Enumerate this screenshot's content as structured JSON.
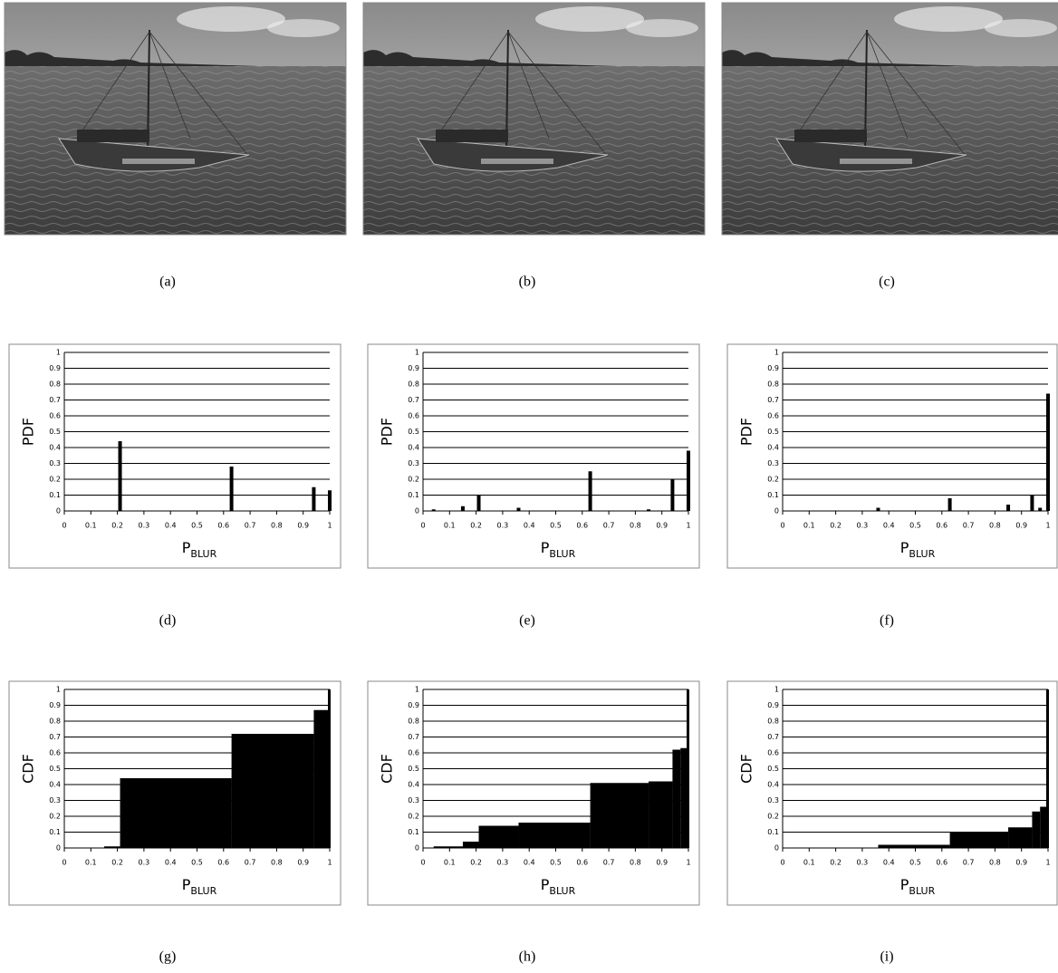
{
  "images": [
    {
      "caption": "(a)"
    },
    {
      "caption": "(b)"
    },
    {
      "caption": "(c)"
    }
  ],
  "chart_data": [
    {
      "type": "bar",
      "caption": "(d)",
      "ylabel": "PDF",
      "xlabel": "P",
      "xlabel_subscript": "BLUR",
      "color": "#000000",
      "grid": true,
      "x": [
        0.21,
        0.63,
        0.94,
        1.0
      ],
      "values": [
        0.44,
        0.28,
        0.15,
        0.13
      ],
      "xlim": [
        0,
        1
      ],
      "ylim": [
        0,
        1
      ],
      "xticks": [
        0,
        0.1,
        0.2,
        0.3,
        0.4,
        0.5,
        0.6,
        0.7,
        0.8,
        0.9,
        1
      ],
      "yticks": [
        0,
        0.1,
        0.2,
        0.3,
        0.4,
        0.5,
        0.6,
        0.7,
        0.8,
        0.9,
        1
      ]
    },
    {
      "type": "bar",
      "caption": "(e)",
      "ylabel": "PDF",
      "xlabel": "P",
      "xlabel_subscript": "BLUR",
      "color": "#000000",
      "grid": true,
      "x": [
        0.04,
        0.15,
        0.21,
        0.36,
        0.63,
        0.85,
        0.94,
        1.0
      ],
      "values": [
        0.01,
        0.03,
        0.1,
        0.02,
        0.25,
        0.01,
        0.2,
        0.38
      ],
      "xlim": [
        0,
        1
      ],
      "ylim": [
        0,
        1
      ],
      "xticks": [
        0,
        0.1,
        0.2,
        0.3,
        0.4,
        0.5,
        0.6,
        0.7,
        0.8,
        0.9,
        1
      ],
      "yticks": [
        0,
        0.1,
        0.2,
        0.3,
        0.4,
        0.5,
        0.6,
        0.7,
        0.8,
        0.9,
        1
      ]
    },
    {
      "type": "bar",
      "caption": "(f)",
      "ylabel": "PDF",
      "xlabel": "P",
      "xlabel_subscript": "BLUR",
      "color": "#000000",
      "grid": true,
      "x": [
        0.36,
        0.63,
        0.85,
        0.94,
        0.97,
        1.0
      ],
      "values": [
        0.02,
        0.08,
        0.04,
        0.1,
        0.02,
        0.74
      ],
      "xlim": [
        0,
        1
      ],
      "ylim": [
        0,
        1
      ],
      "xticks": [
        0,
        0.1,
        0.2,
        0.3,
        0.4,
        0.5,
        0.6,
        0.7,
        0.8,
        0.9,
        1
      ],
      "yticks": [
        0,
        0.1,
        0.2,
        0.3,
        0.4,
        0.5,
        0.6,
        0.7,
        0.8,
        0.9,
        1
      ]
    },
    {
      "type": "step",
      "caption": "(g)",
      "ylabel": "CDF",
      "xlabel": "P",
      "xlabel_subscript": "BLUR",
      "color": "#000000",
      "grid": true,
      "x": [
        0.15,
        0.21,
        0.63,
        0.94,
        1.0
      ],
      "values": [
        0.01,
        0.44,
        0.72,
        0.87,
        1.0
      ],
      "xlim": [
        0,
        1
      ],
      "ylim": [
        0,
        1
      ],
      "xticks": [
        0,
        0.1,
        0.2,
        0.3,
        0.4,
        0.5,
        0.6,
        0.7,
        0.8,
        0.9,
        1
      ],
      "yticks": [
        0,
        0.1,
        0.2,
        0.3,
        0.4,
        0.5,
        0.6,
        0.7,
        0.8,
        0.9,
        1
      ]
    },
    {
      "type": "step",
      "caption": "(h)",
      "ylabel": "CDF",
      "xlabel": "P",
      "xlabel_subscript": "BLUR",
      "color": "#000000",
      "grid": true,
      "x": [
        0.04,
        0.15,
        0.21,
        0.36,
        0.63,
        0.85,
        0.94,
        0.97,
        1.0
      ],
      "values": [
        0.01,
        0.04,
        0.14,
        0.16,
        0.41,
        0.42,
        0.62,
        0.63,
        1.0
      ],
      "xlim": [
        0,
        1
      ],
      "ylim": [
        0,
        1
      ],
      "xticks": [
        0,
        0.1,
        0.2,
        0.3,
        0.4,
        0.5,
        0.6,
        0.7,
        0.8,
        0.9,
        1
      ],
      "yticks": [
        0,
        0.1,
        0.2,
        0.3,
        0.4,
        0.5,
        0.6,
        0.7,
        0.8,
        0.9,
        1
      ]
    },
    {
      "type": "step",
      "caption": "(i)",
      "ylabel": "CDF",
      "xlabel": "P",
      "xlabel_subscript": "BLUR",
      "color": "#000000",
      "grid": true,
      "x": [
        0.36,
        0.63,
        0.85,
        0.94,
        0.97,
        1.0
      ],
      "values": [
        0.02,
        0.1,
        0.13,
        0.23,
        0.26,
        1.0
      ],
      "xlim": [
        0,
        1
      ],
      "ylim": [
        0,
        1
      ],
      "xticks": [
        0,
        0.1,
        0.2,
        0.3,
        0.4,
        0.5,
        0.6,
        0.7,
        0.8,
        0.9,
        1
      ],
      "yticks": [
        0,
        0.1,
        0.2,
        0.3,
        0.4,
        0.5,
        0.6,
        0.7,
        0.8,
        0.9,
        1
      ]
    }
  ]
}
